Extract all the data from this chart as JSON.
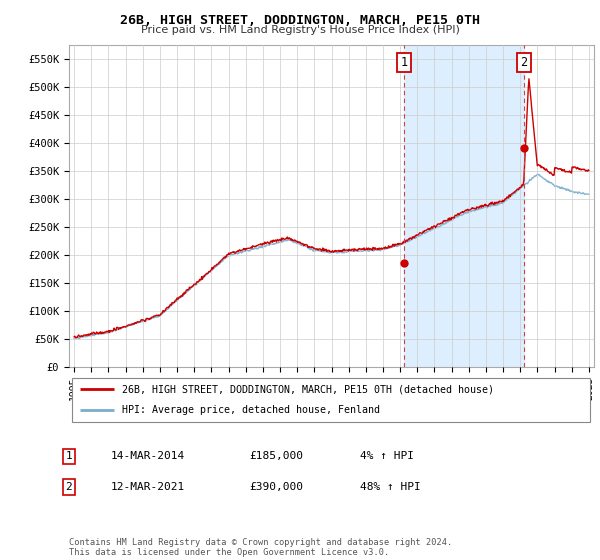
{
  "title": "26B, HIGH STREET, DODDINGTON, MARCH, PE15 0TH",
  "subtitle": "Price paid vs. HM Land Registry's House Price Index (HPI)",
  "ylim": [
    0,
    575000
  ],
  "yticks": [
    0,
    50000,
    100000,
    150000,
    200000,
    250000,
    300000,
    350000,
    400000,
    450000,
    500000,
    550000
  ],
  "ytick_labels": [
    "£0",
    "£50K",
    "£100K",
    "£150K",
    "£200K",
    "£250K",
    "£300K",
    "£350K",
    "£400K",
    "£450K",
    "£500K",
    "£550K"
  ],
  "x_start_year": 1995,
  "x_end_year": 2025,
  "xtick_years": [
    1995,
    1996,
    1997,
    1998,
    1999,
    2000,
    2001,
    2002,
    2003,
    2004,
    2005,
    2006,
    2007,
    2008,
    2009,
    2010,
    2011,
    2012,
    2013,
    2014,
    2015,
    2016,
    2017,
    2018,
    2019,
    2020,
    2021,
    2022,
    2023,
    2024,
    2025
  ],
  "sale1_x": 2014.21,
  "sale1_y": 185000,
  "sale1_label": "1",
  "sale1_date": "14-MAR-2014",
  "sale1_price": "£185,000",
  "sale1_hpi": "4% ↑ HPI",
  "sale2_x": 2021.21,
  "sale2_y": 390000,
  "sale2_label": "2",
  "sale2_date": "12-MAR-2021",
  "sale2_price": "£390,000",
  "sale2_hpi": "48% ↑ HPI",
  "line_color_sold": "#cc0000",
  "line_color_hpi": "#7aadcc",
  "shade_color": "#ddeeff",
  "marker_color_sold": "#cc0000",
  "grid_color": "#cccccc",
  "background_color": "#ffffff",
  "legend_label_sold": "26B, HIGH STREET, DODDINGTON, MARCH, PE15 0TH (detached house)",
  "legend_label_hpi": "HPI: Average price, detached house, Fenland",
  "footer": "Contains HM Land Registry data © Crown copyright and database right 2024.\nThis data is licensed under the Open Government Licence v3.0.",
  "vline_color": "#cc4444",
  "box_color": "#cc0000"
}
